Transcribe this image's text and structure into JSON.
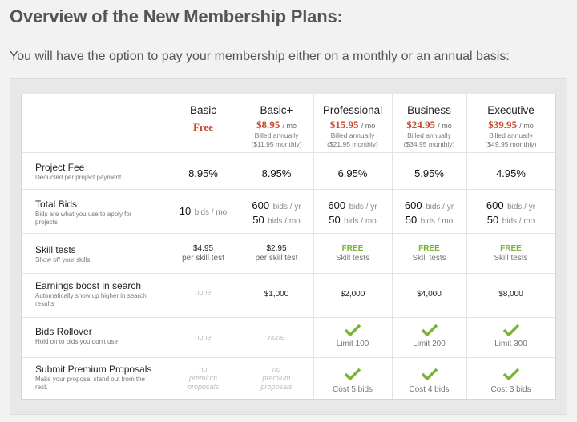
{
  "page": {
    "title": "Overview of the New Membership Plans:",
    "subtitle": "You will have the option to pay your membership either on a monthly or an annual basis:"
  },
  "plans": [
    {
      "name": "Basic",
      "price": "Free"
    },
    {
      "name": "Basic+",
      "price": "$8.95",
      "per": "/ mo",
      "billed": "Billed annually",
      "monthly": "($11.95 monthly)"
    },
    {
      "name": "Professional",
      "price": "$15.95",
      "per": "/ mo",
      "billed": "Billed annually",
      "monthly": "($21.95 monthly)"
    },
    {
      "name": "Business",
      "price": "$24.95",
      "per": "/ mo",
      "billed": "Billed annually",
      "monthly": "($34.95 monthly)"
    },
    {
      "name": "Executive",
      "price": "$39.95",
      "per": "/ mo",
      "billed": "Billed annually",
      "monthly": "($49.95 monthly)"
    }
  ],
  "features": [
    {
      "title": "Project Fee",
      "desc": "Deducted per project payment"
    },
    {
      "title": "Total Bids",
      "desc": "Bids are what you use to apply for projects"
    },
    {
      "title": "Skill tests",
      "desc": "Show off your skills"
    },
    {
      "title": "Earnings boost in search",
      "desc": "Automatically show up higher in search results"
    },
    {
      "title": "Bids Rollover",
      "desc": "Hold on to bids you don't use"
    },
    {
      "title": "Submit Premium Proposals",
      "desc": "Make your proposal stand out from the rest."
    }
  ],
  "project_fee": [
    "8.95%",
    "8.95%",
    "6.95%",
    "5.95%",
    "4.95%"
  ],
  "total_bids": {
    "basic": {
      "value": "10",
      "unit": "bids / mo"
    },
    "paid": [
      {
        "yr": "600",
        "mo": "50"
      },
      {
        "yr": "600",
        "mo": "50"
      },
      {
        "yr": "600",
        "mo": "50"
      },
      {
        "yr": "600",
        "mo": "50"
      }
    ],
    "yr_unit": "bids / yr",
    "mo_unit": "bids / mo"
  },
  "skill_tests": {
    "basic": {
      "price": "$4.95",
      "sub": "per skill test"
    },
    "basicplus": {
      "price": "$2.95",
      "sub": "per skill test"
    },
    "free_label": "FREE",
    "free_sub": "Skill tests"
  },
  "earnings_boost": [
    "none",
    "$1,000",
    "$2,000",
    "$4,000",
    "$8,000"
  ],
  "rollover": {
    "none": "none",
    "limits": [
      "Limit 100",
      "Limit 200",
      "Limit 300"
    ]
  },
  "premium": {
    "none_l1": "no",
    "none_l2": "premium",
    "none_l3": "proposals",
    "costs": [
      "Cost 5 bids",
      "Cost 4 bids",
      "Cost 3 bids"
    ]
  },
  "colors": {
    "price": "#c9492b",
    "free": "#7ab335",
    "check": "#7ab335"
  }
}
